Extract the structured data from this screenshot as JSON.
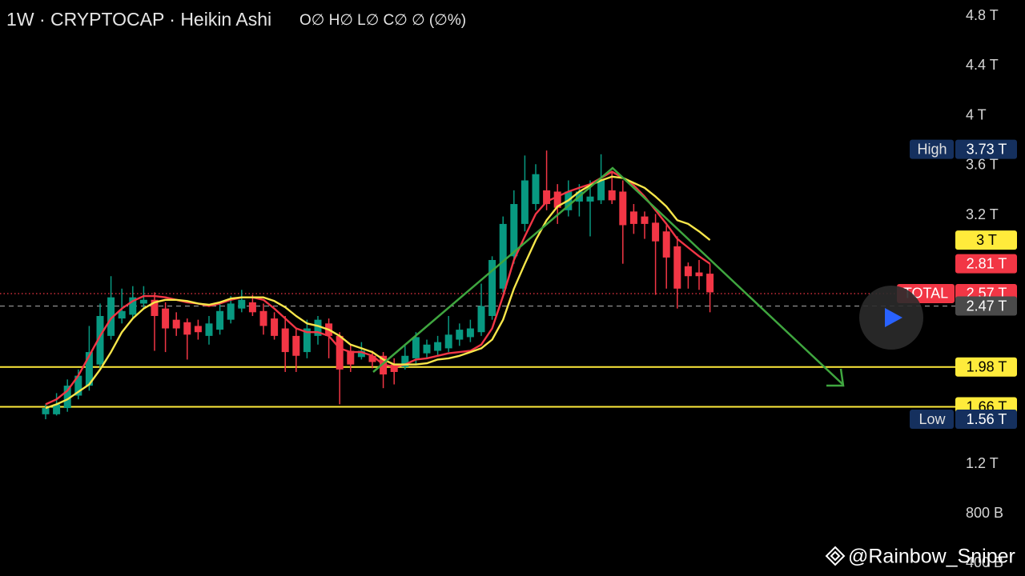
{
  "header": {
    "title": "· 1W · CRYPTOCAP · Heikin Ashi",
    "ohlc": "O∅ H∅ L∅ C∅ ∅ (∅%)"
  },
  "watermark": "@Rainbow_Sniper",
  "chart_data": {
    "type": "candlestick",
    "up_color": "#089981",
    "down_color": "#f23645",
    "open": [
      1.6,
      1.6,
      1.65,
      1.75,
      1.83,
      2.0,
      2.23,
      2.37,
      2.4,
      2.49,
      2.52,
      2.45,
      2.36,
      2.34,
      2.31,
      2.23,
      2.28,
      2.36,
      2.45,
      2.5,
      2.43,
      2.37,
      2.29,
      2.23,
      2.1,
      2.23,
      2.33,
      2.23,
      2.11,
      2.06,
      2.07,
      2.07,
      2.0,
      1.98,
      2.05,
      2.09,
      2.11,
      2.13,
      2.2,
      2.22,
      2.26,
      2.39,
      2.61,
      2.87,
      3.13,
      3.29,
      3.4,
      3.39,
      3.24,
      3.31,
      3.31,
      3.32,
      3.4,
      3.39,
      3.23,
      3.19,
      3.14,
      3.07,
      2.95,
      2.79,
      2.74,
      2.73
    ],
    "high": [
      1.68,
      1.77,
      1.88,
      1.96,
      2.31,
      2.49,
      2.71,
      2.61,
      2.63,
      2.63,
      2.58,
      2.5,
      2.42,
      2.37,
      2.36,
      2.39,
      2.5,
      2.55,
      2.6,
      2.56,
      2.49,
      2.42,
      2.39,
      2.29,
      2.36,
      2.39,
      2.37,
      2.26,
      2.16,
      2.18,
      2.11,
      2.1,
      2.05,
      2.16,
      2.26,
      2.2,
      2.23,
      2.39,
      2.33,
      2.36,
      2.65,
      2.87,
      3.19,
      3.4,
      3.68,
      3.61,
      3.72,
      3.45,
      3.48,
      3.45,
      3.48,
      3.69,
      3.55,
      3.48,
      3.29,
      3.23,
      3.21,
      3.12,
      3.03,
      2.82,
      2.84,
      2.81
    ],
    "low": [
      1.56,
      1.59,
      1.62,
      1.72,
      1.79,
      1.97,
      2.2,
      2.33,
      2.37,
      2.45,
      2.11,
      2.1,
      2.23,
      2.04,
      2.2,
      2.16,
      2.24,
      2.33,
      2.42,
      2.39,
      2.24,
      2.2,
      1.94,
      1.94,
      2.05,
      2.16,
      2.05,
      1.68,
      1.94,
      2.04,
      1.97,
      1.81,
      1.84,
      1.96,
      2.0,
      2.05,
      2.07,
      2.1,
      2.15,
      2.18,
      2.23,
      2.36,
      2.58,
      2.81,
      3.07,
      3.24,
      3.24,
      3.13,
      3.19,
      3.19,
      3.03,
      3.29,
      3.29,
      2.81,
      3.05,
      3.01,
      2.56,
      2.61,
      2.45,
      2.61,
      2.6,
      2.42
    ],
    "close": [
      1.65,
      1.68,
      1.83,
      1.91,
      2.1,
      2.39,
      2.54,
      2.43,
      2.54,
      2.52,
      2.39,
      2.29,
      2.29,
      2.24,
      2.26,
      2.33,
      2.43,
      2.49,
      2.52,
      2.42,
      2.31,
      2.23,
      2.1,
      2.07,
      2.29,
      2.36,
      2.23,
      1.96,
      2.0,
      2.11,
      2.02,
      1.92,
      1.94,
      2.07,
      2.22,
      2.16,
      2.18,
      2.24,
      2.28,
      2.29,
      2.47,
      2.84,
      3.13,
      3.29,
      3.48,
      3.53,
      3.29,
      3.26,
      3.39,
      3.39,
      3.35,
      3.48,
      3.32,
      3.12,
      3.13,
      3.13,
      2.99,
      2.86,
      2.61,
      2.71,
      2.71,
      2.58
    ],
    "series": [
      {
        "color": "#f23645",
        "values": [
          1.68,
          1.72,
          1.79,
          1.91,
          2.07,
          2.23,
          2.37,
          2.45,
          2.51,
          2.55,
          2.55,
          2.54,
          2.52,
          2.5,
          2.49,
          2.47,
          2.49,
          2.52,
          2.54,
          2.54,
          2.52,
          2.45,
          2.37,
          2.29,
          2.26,
          2.26,
          2.23,
          2.13,
          2.1,
          2.1,
          2.07,
          2.0,
          1.98,
          2.0,
          2.04,
          2.05,
          2.07,
          2.09,
          2.1,
          2.11,
          2.16,
          2.29,
          2.55,
          2.84,
          3.03,
          3.21,
          3.31,
          3.35,
          3.39,
          3.42,
          3.45,
          3.5,
          3.55,
          3.5,
          3.44,
          3.35,
          3.24,
          3.13,
          3.01,
          2.94,
          2.87,
          2.81
        ]
      },
      {
        "color": "#f7e64a",
        "values": [
          1.65,
          1.68,
          1.72,
          1.78,
          1.84,
          1.96,
          2.1,
          2.26,
          2.37,
          2.45,
          2.5,
          2.52,
          2.52,
          2.51,
          2.49,
          2.48,
          2.5,
          2.53,
          2.54,
          2.54,
          2.54,
          2.51,
          2.46,
          2.39,
          2.33,
          2.31,
          2.28,
          2.23,
          2.16,
          2.13,
          2.1,
          2.04,
          2.0,
          2.0,
          2.0,
          2.01,
          2.04,
          2.05,
          2.07,
          2.1,
          2.13,
          2.2,
          2.36,
          2.61,
          2.81,
          3.0,
          3.16,
          3.27,
          3.32,
          3.39,
          3.44,
          3.48,
          3.51,
          3.5,
          3.46,
          3.42,
          3.35,
          3.27,
          3.16,
          3.13,
          3.07,
          3.0
        ]
      }
    ],
    "ylim": [
      0.3,
      4.93
    ],
    "yticks": [
      {
        "value": 4.8,
        "label": "4.8 T"
      },
      {
        "value": 4.4,
        "label": "4.4 T"
      },
      {
        "value": 4,
        "label": "4 T"
      },
      {
        "value": 3.6,
        "label": "3.6 T"
      },
      {
        "value": 3.2,
        "label": "3.2 T"
      },
      {
        "value": 1.2,
        "label": "1.2 T"
      },
      {
        "value": 0.8,
        "label": "800 B"
      },
      {
        "value": 0.4,
        "label": "400 B"
      }
    ],
    "levels": [
      {
        "value": 1.98,
        "label": "1.98 T",
        "color": "#ffeb3b"
      },
      {
        "value": 1.66,
        "label": "1.66 T",
        "color": "#ffeb3b"
      }
    ],
    "markers": [
      {
        "value": 3,
        "label": "3 T",
        "color": "#ffeb3b",
        "text_color": "#000000"
      },
      {
        "value": 2.81,
        "label": "2.81 T",
        "color": "#f23645",
        "text_color": "#ffffff"
      },
      {
        "name": "TOTAL",
        "value": 2.57,
        "label": "2.57 T",
        "color": "#f23645",
        "text_color": "#ffffff",
        "line": "dotted"
      },
      {
        "value": 2.47,
        "label": "2.47 T",
        "color": "#4a4a4a",
        "text_color": "#ffffff",
        "line": "dashed"
      }
    ],
    "extremes": [
      {
        "name": "High",
        "value": 3.73,
        "label": "3.73 T",
        "color": "#15305e"
      },
      {
        "name": "Low",
        "value": 1.56,
        "label": "1.56 T",
        "color": "#15305e"
      }
    ]
  }
}
